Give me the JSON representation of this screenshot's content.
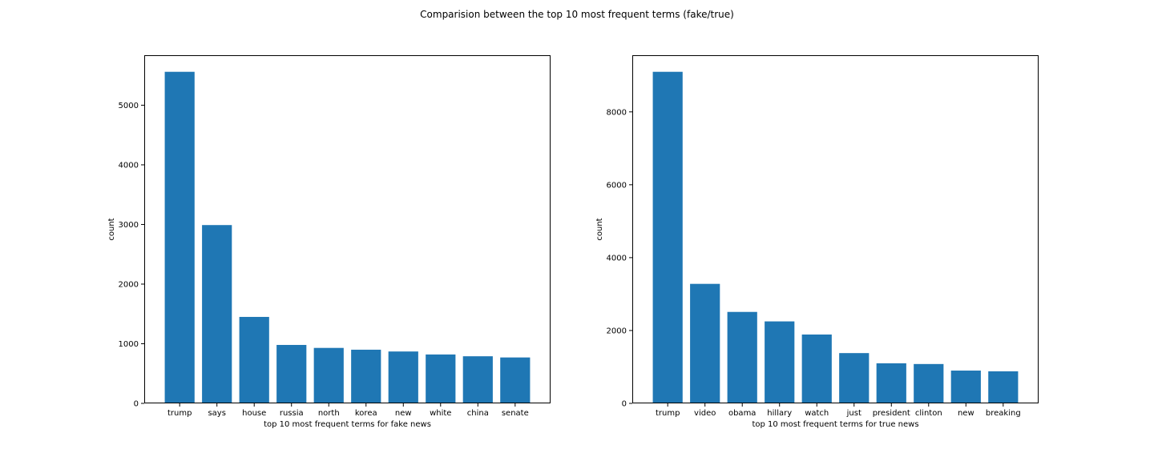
{
  "figure": {
    "title": "Comparision between the top 10 most frequent terms (fake/true)"
  },
  "colors": {
    "bar": "#1f77b4",
    "axis": "#000000",
    "background": "#ffffff"
  },
  "chart_data": [
    {
      "type": "bar",
      "title": "",
      "xlabel": "top 10 most frequent terms for fake news",
      "ylabel": "count",
      "categories": [
        "trump",
        "says",
        "house",
        "russia",
        "north",
        "korea",
        "new",
        "white",
        "china",
        "senate"
      ],
      "values": [
        5560,
        2990,
        1450,
        980,
        930,
        900,
        870,
        820,
        790,
        770
      ],
      "ylim": [
        0,
        5838
      ],
      "yticks": [
        0,
        1000,
        2000,
        3000,
        4000,
        5000
      ],
      "grid": false
    },
    {
      "type": "bar",
      "title": "",
      "xlabel": "top 10 most frequent terms for true news",
      "ylabel": "count",
      "categories": [
        "trump",
        "video",
        "obama",
        "hillary",
        "watch",
        "just",
        "president",
        "clinton",
        "new",
        "breaking"
      ],
      "values": [
        9100,
        3280,
        2510,
        2250,
        1890,
        1380,
        1100,
        1080,
        900,
        880
      ],
      "ylim": [
        0,
        9555
      ],
      "yticks": [
        0,
        2000,
        4000,
        6000,
        8000
      ],
      "grid": false
    }
  ]
}
